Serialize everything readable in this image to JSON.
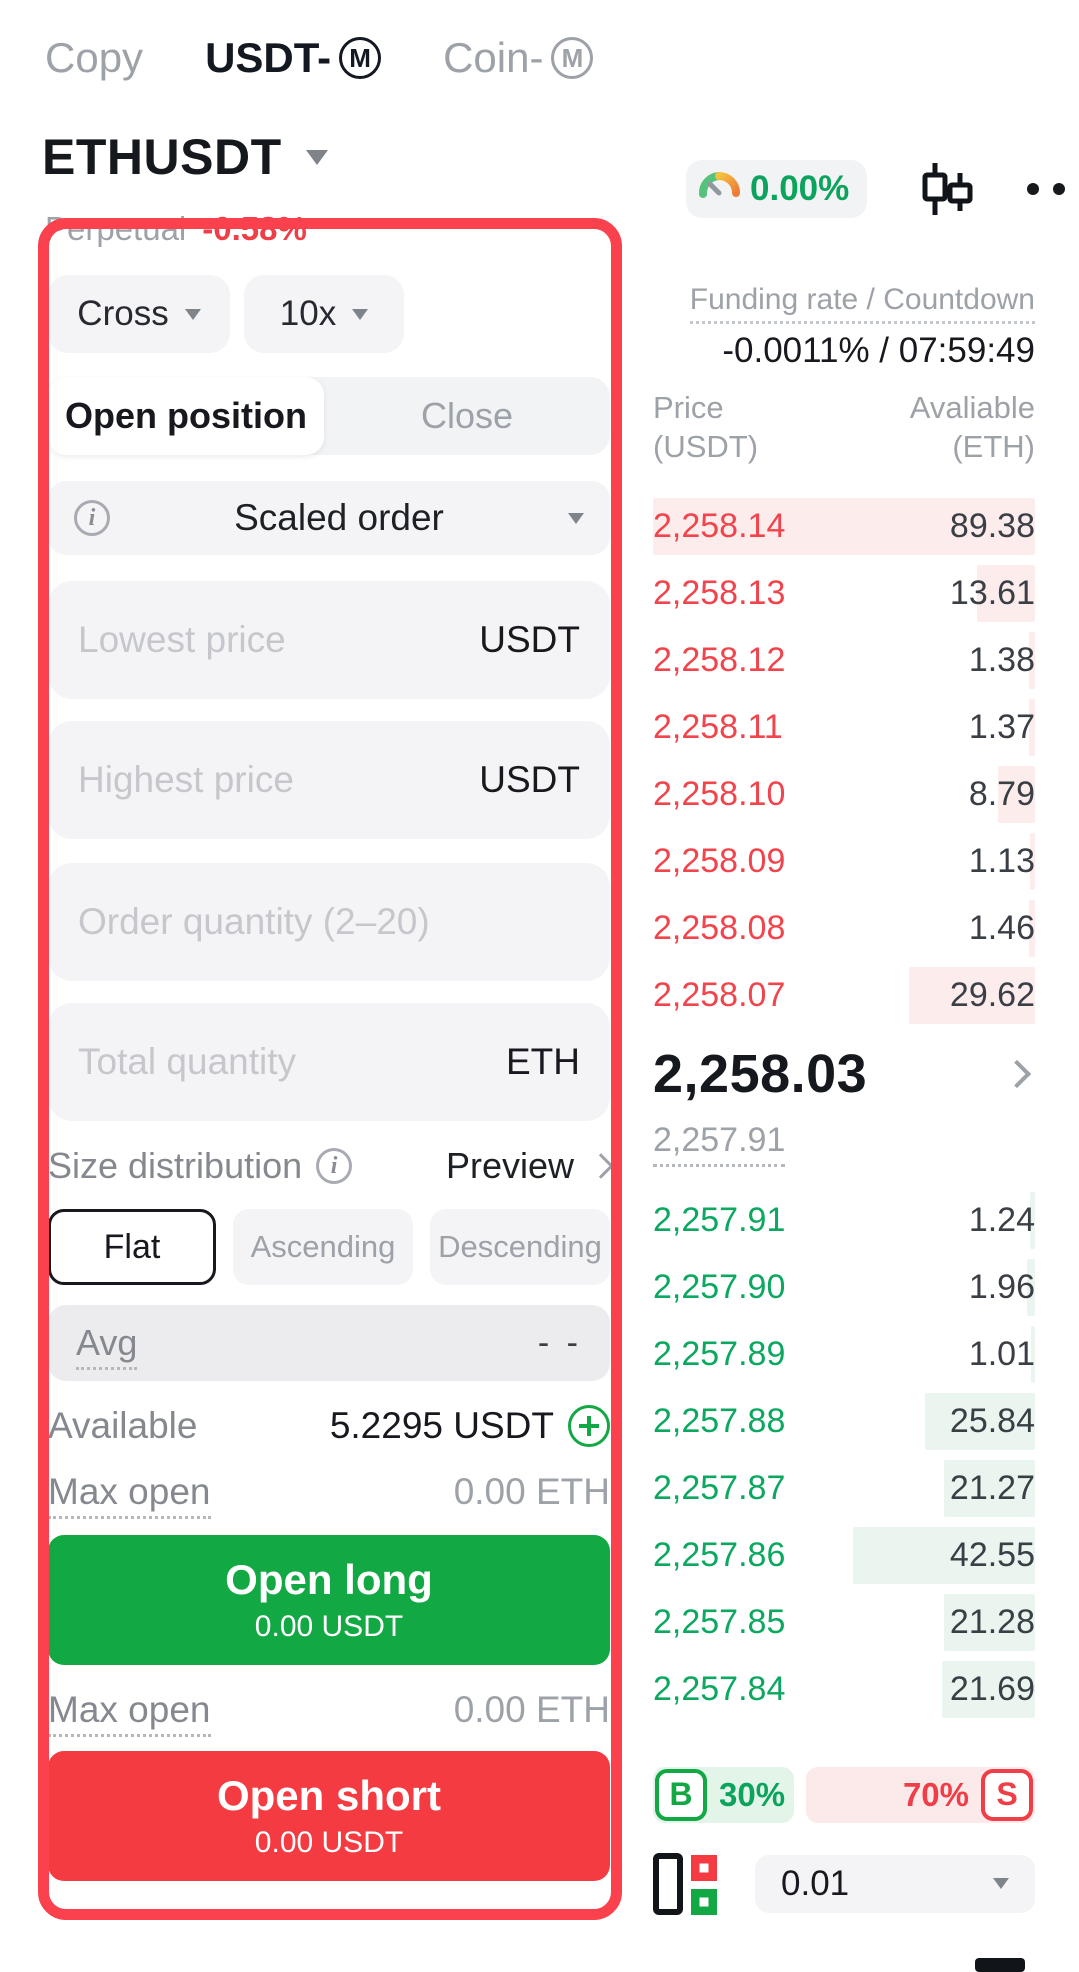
{
  "tabs": {
    "copy": "Copy",
    "usdt_m": "USDT-",
    "coin_m": "Coin-",
    "m_badge": "M"
  },
  "symbol": {
    "name": "ETHUSDT",
    "contract": "Perpetual",
    "change_24h": "-0.58%"
  },
  "header": {
    "ticker_change": "0.00%"
  },
  "trade_panel": {
    "margin_mode": "Cross",
    "leverage": "10x",
    "tab_open": "Open position",
    "tab_close": "Close",
    "order_type": "Scaled order",
    "lowest_price": {
      "placeholder": "Lowest price",
      "unit": "USDT"
    },
    "highest_price": {
      "placeholder": "Highest price",
      "unit": "USDT"
    },
    "order_quantity": {
      "placeholder": "Order quantity (2–20)"
    },
    "total_quantity": {
      "placeholder": "Total quantity",
      "unit": "ETH"
    },
    "size_distribution": {
      "label": "Size distribution",
      "preview": "Preview",
      "options": {
        "flat": "Flat",
        "ascending": "Ascending",
        "descending": "Descending"
      },
      "selected": "Flat"
    },
    "avg": {
      "label": "Avg",
      "value": "- -"
    },
    "available": {
      "label": "Available",
      "value": "5.2295 USDT"
    },
    "max_open_long": {
      "label": "Max open",
      "value": "0.00 ETH"
    },
    "open_long": {
      "label": "Open long",
      "sub": "0.00 USDT"
    },
    "max_open_short": {
      "label": "Max open",
      "value": "0.00 ETH"
    },
    "open_short": {
      "label": "Open short",
      "sub": "0.00 USDT"
    }
  },
  "orderbook": {
    "funding_label": "Funding rate / Countdown",
    "funding_value": "-0.0011% / 07:59:49",
    "columns": {
      "price": "Price",
      "price_unit": "(USDT)",
      "amount": "Avaliable",
      "amount_unit": "(ETH)"
    },
    "asks": [
      {
        "price": "2,258.14",
        "amount": 89.38
      },
      {
        "price": "2,258.13",
        "amount": 13.61
      },
      {
        "price": "2,258.12",
        "amount": 1.38
      },
      {
        "price": "2,258.11",
        "amount": 1.37
      },
      {
        "price": "2,258.10",
        "amount": 8.79
      },
      {
        "price": "2,258.09",
        "amount": 1.13
      },
      {
        "price": "2,258.08",
        "amount": 1.46
      },
      {
        "price": "2,258.07",
        "amount": 29.62
      }
    ],
    "last_price": "2,258.03",
    "mark_price": "2,257.91",
    "bids": [
      {
        "price": "2,257.91",
        "amount": 1.24
      },
      {
        "price": "2,257.90",
        "amount": 1.96
      },
      {
        "price": "2,257.89",
        "amount": 1.01
      },
      {
        "price": "2,257.88",
        "amount": 25.84
      },
      {
        "price": "2,257.87",
        "amount": 21.27
      },
      {
        "price": "2,257.86",
        "amount": 42.55
      },
      {
        "price": "2,257.85",
        "amount": 21.28
      },
      {
        "price": "2,257.84",
        "amount": 21.69
      }
    ],
    "buy_badge": "B",
    "buy_ratio": "30%",
    "sell_ratio": "70%",
    "sell_badge": "S",
    "tick_size": "0.01"
  },
  "colors": {
    "ask_red": "#f0454c",
    "bid_green": "#0ca760",
    "buy_button": "#12a843",
    "sell_button": "#f43b41",
    "annotation_red": "#fa414d",
    "accent_green_text": "#0ca35c"
  }
}
